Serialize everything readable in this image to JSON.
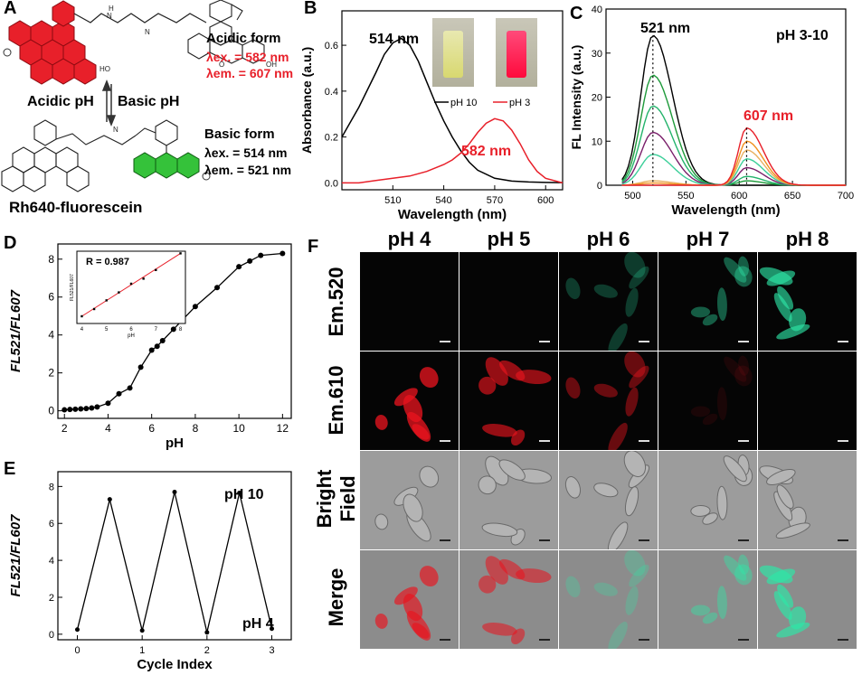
{
  "panels": [
    "A",
    "B",
    "C",
    "D",
    "E",
    "F"
  ],
  "panel_a": {
    "acidic_form": "Acidic form",
    "acidic_ex": "λex. = 582 nm",
    "acidic_em": "λem. = 607 nm",
    "acidic_ph": "Acidic pH",
    "basic_ph": "Basic pH",
    "basic_form": "Basic form",
    "basic_ex": "λex. = 514 nm",
    "basic_em": "λem. = 521 nm",
    "compound": "Rh640-fluorescein",
    "colors": {
      "acidic_ring": "#e8202a",
      "basic_ring": "#35c23a",
      "red_text": "#e8202a"
    }
  },
  "panel_b": {
    "chart_data": {
      "type": "line",
      "xlabel": "Wavelength (nm)",
      "ylabel": "Absorbance (a.u.)",
      "xlim": [
        480,
        610
      ],
      "ylim": [
        -0.03,
        0.75
      ],
      "xticks": [
        510,
        540,
        570,
        600
      ],
      "yticks": [
        0.0,
        0.2,
        0.4,
        0.6
      ],
      "annotations": [
        "514 nm",
        "582 nm"
      ],
      "legend": "top-right",
      "series": [
        {
          "name": "pH 10",
          "color": "#000000",
          "x": [
            480,
            490,
            500,
            505,
            510,
            515,
            520,
            525,
            530,
            535,
            540,
            545,
            550,
            555,
            560,
            570,
            580,
            590,
            600,
            610
          ],
          "y": [
            0.2,
            0.33,
            0.48,
            0.56,
            0.61,
            0.63,
            0.6,
            0.53,
            0.44,
            0.35,
            0.27,
            0.2,
            0.14,
            0.09,
            0.055,
            0.02,
            0.008,
            0.004,
            0.002,
            0.001
          ]
        },
        {
          "name": "pH 3",
          "color": "#e8202a",
          "x": [
            480,
            490,
            500,
            510,
            520,
            530,
            540,
            545,
            550,
            555,
            560,
            565,
            570,
            575,
            580,
            585,
            590,
            595,
            600,
            610
          ],
          "y": [
            0.0,
            0.0,
            0.01,
            0.02,
            0.03,
            0.05,
            0.08,
            0.1,
            0.13,
            0.17,
            0.22,
            0.26,
            0.28,
            0.27,
            0.23,
            0.17,
            0.1,
            0.05,
            0.02,
            0.0
          ]
        }
      ]
    },
    "inset_labels": [
      "pH 10",
      "pH 3"
    ]
  },
  "panel_c": {
    "chart_data": {
      "type": "line",
      "xlabel": "Wavelength (nm)",
      "ylabel": "FL Intensity (a.u.)",
      "title": "pH 3-10",
      "xlim": [
        475,
        700
      ],
      "ylim": [
        0,
        40
      ],
      "xticks": [
        500,
        550,
        600,
        650,
        700
      ],
      "yticks": [
        0,
        10,
        20,
        30,
        40
      ],
      "annotations": [
        "521 nm",
        "607 nm"
      ],
      "series": [
        {
          "color": "#000000",
          "peak521": 34,
          "peak607": 0
        },
        {
          "color": "#1e9a3a",
          "peak521": 25,
          "peak607": 1
        },
        {
          "color": "#23b36b",
          "peak521": 18,
          "peak607": 2
        },
        {
          "color": "#7a1f6a",
          "peak521": 12,
          "peak607": 4
        },
        {
          "color": "#3ccf99",
          "peak521": 7,
          "peak607": 6
        },
        {
          "color": "#e8b060",
          "peak521": 1,
          "peak607": 8
        },
        {
          "color": "#f0901e",
          "peak521": 0.5,
          "peak607": 10
        },
        {
          "color": "#e8202a",
          "peak521": 0,
          "peak607": 13
        }
      ]
    }
  },
  "panel_d": {
    "chart_data": {
      "type": "scatter",
      "xlabel": "pH",
      "ylabel": "FL521/FL607",
      "xlim": [
        1.7,
        12.4
      ],
      "ylim": [
        -0.4,
        8.8
      ],
      "xticks": [
        2,
        4,
        6,
        8,
        10,
        12
      ],
      "yticks": [
        0,
        2,
        4,
        6,
        8
      ],
      "x": [
        2.0,
        2.25,
        2.5,
        2.75,
        3.0,
        3.25,
        3.5,
        4.0,
        4.5,
        5.0,
        5.5,
        6.0,
        6.25,
        6.5,
        7.0,
        8.0,
        9.0,
        10.0,
        10.5,
        11.0,
        12.0
      ],
      "y": [
        0.05,
        0.07,
        0.08,
        0.1,
        0.12,
        0.15,
        0.2,
        0.4,
        0.9,
        1.2,
        2.3,
        3.2,
        3.4,
        3.7,
        4.3,
        5.5,
        6.5,
        7.6,
        7.9,
        8.2,
        8.3
      ],
      "inset": {
        "label": "R = 0.987",
        "xlabel": "pH",
        "ylabel": "FL521/FL607",
        "xlim": [
          3.8,
          8.2
        ],
        "ylim": [
          0,
          1
        ],
        "xticks": [
          4,
          5,
          6,
          7,
          8
        ],
        "x": [
          4,
          4.5,
          5,
          5.5,
          6,
          6.5,
          7,
          8
        ],
        "y": [
          0.1,
          0.2,
          0.32,
          0.43,
          0.55,
          0.62,
          0.74,
          0.97
        ]
      }
    }
  },
  "panel_e": {
    "chart_data": {
      "type": "line",
      "xlabel": "Cycle Index",
      "ylabel": "FL521/FL607",
      "xlim": [
        -0.3,
        3.3
      ],
      "ylim": [
        -0.3,
        8.8
      ],
      "xticks": [
        0,
        1,
        2,
        3
      ],
      "yticks": [
        0,
        2,
        4,
        6,
        8
      ],
      "annotations": [
        "pH 10",
        "pH 4"
      ],
      "x": [
        0,
        0.5,
        1,
        1.5,
        2,
        2.5,
        3
      ],
      "y": [
        0.25,
        7.3,
        0.2,
        7.7,
        0.1,
        7.65,
        0.3
      ]
    }
  },
  "panel_f": {
    "columns": [
      "pH 4",
      "pH 5",
      "pH 6",
      "pH 7",
      "pH 8"
    ],
    "rows": [
      {
        "label": "Em.520",
        "type": "green"
      },
      {
        "label": "Em.610",
        "type": "red"
      },
      {
        "label": "Bright Field",
        "type": "bright"
      },
      {
        "label": "Merge",
        "type": "merge"
      }
    ],
    "green_intensity": [
      0.0,
      0.0,
      0.35,
      0.55,
      0.9
    ],
    "red_intensity": [
      0.95,
      0.8,
      0.55,
      0.12,
      0.05
    ],
    "colors": {
      "green": "#2ee8a8",
      "red": "#e8141e"
    }
  }
}
